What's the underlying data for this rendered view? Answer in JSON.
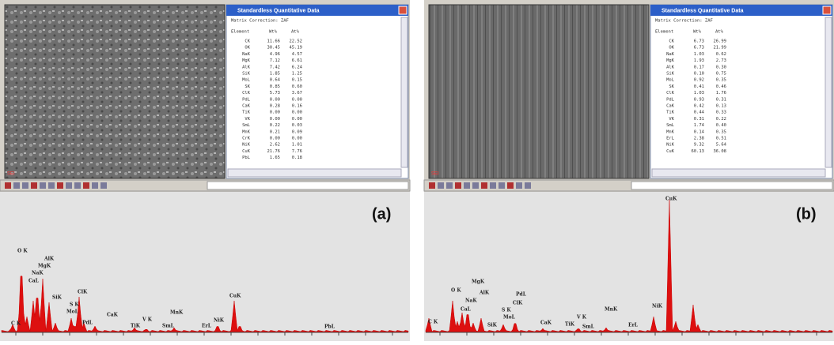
{
  "panels": [
    {
      "label": "(a)",
      "window_title": "Standardless Quantitative Data",
      "matrix_correction": "Matrix Correction:   ZAF",
      "image_caption": "SEI",
      "table_header": [
        "Element",
        "Wt%",
        "At%"
      ],
      "rows": [
        [
          "CK",
          "11.66",
          "22.52"
        ],
        [
          "OK",
          "30.45",
          "45.19"
        ],
        [
          "NaK",
          "4.96",
          "4.57"
        ],
        [
          "MgK",
          "7.12",
          "6.61"
        ],
        [
          "AlK",
          "7.42",
          "6.24"
        ],
        [
          "SiK",
          "1.85",
          "1.25"
        ],
        [
          "MoL",
          "0.64",
          "0.15"
        ],
        [
          "SK",
          "0.85",
          "0.60"
        ],
        [
          "ClK",
          "5.73",
          "3.67"
        ],
        [
          "PdL",
          "0.00",
          "0.00"
        ],
        [
          "CaK",
          "0.28",
          "0.16"
        ],
        [
          "TiK",
          "0.00",
          "0.00"
        ],
        [
          "VK",
          "0.00",
          "0.00"
        ],
        [
          "SmL",
          "0.22",
          "0.03"
        ],
        [
          "MnK",
          "0.21",
          "0.09"
        ],
        [
          "CrK",
          "0.00",
          "0.00"
        ],
        [
          "NiK",
          "2.62",
          "1.01"
        ],
        [
          "CuK",
          "21.76",
          "7.76"
        ],
        [
          "PbL",
          "1.65",
          "0.18"
        ]
      ],
      "peak_labels": [
        "C K",
        "O K",
        "CaL",
        "NaK",
        "MgK",
        "AlK",
        "SiK",
        "S K",
        "MoL",
        "ClK",
        "PdL",
        "CaK",
        "TiK",
        "V K",
        "SmL",
        "MnK",
        "ErL",
        "NiK",
        "CuK",
        "PbL"
      ]
    },
    {
      "label": "(b)",
      "window_title": "Standardless Quantitative Data",
      "matrix_correction": "Matrix Correction:   ZAF",
      "image_caption": "SEI",
      "table_header": [
        "Element",
        "Wt%",
        "At%"
      ],
      "rows": [
        [
          "CK",
          "6.73",
          "26.99"
        ],
        [
          "OK",
          "6.73",
          "21.99"
        ],
        [
          "NaK",
          "1.03",
          "0.62"
        ],
        [
          "MgK",
          "1.93",
          "2.73"
        ],
        [
          "AlK",
          "0.17",
          "0.30"
        ],
        [
          "SiK",
          "0.10",
          "0.75"
        ],
        [
          "MoL",
          "0.92",
          "0.35"
        ],
        [
          "SK",
          "0.41",
          "0.46"
        ],
        [
          "ClK",
          "1.03",
          "1.76"
        ],
        [
          "PdL",
          "0.93",
          "0.31"
        ],
        [
          "CaK",
          "0.42",
          "0.13"
        ],
        [
          "TiK",
          "0.44",
          "0.33"
        ],
        [
          "VK",
          "0.31",
          "0.22"
        ],
        [
          "SmL",
          "1.74",
          "0.40"
        ],
        [
          "MnK",
          "0.14",
          "0.35"
        ],
        [
          "ErL",
          "2.38",
          "0.51"
        ],
        [
          "NiK",
          "9.32",
          "5.64"
        ],
        [
          "CuK",
          "60.13",
          "36.08"
        ]
      ],
      "peak_labels": [
        "C K",
        "O K",
        "CaL",
        "NaK",
        "MgK",
        "AlK",
        "SiK",
        "S K",
        "MoL",
        "ClK",
        "PdL",
        "CaK",
        "TiK",
        "V K",
        "SmL",
        "MnK",
        "ErL",
        "NiK",
        "CuK"
      ]
    }
  ]
}
